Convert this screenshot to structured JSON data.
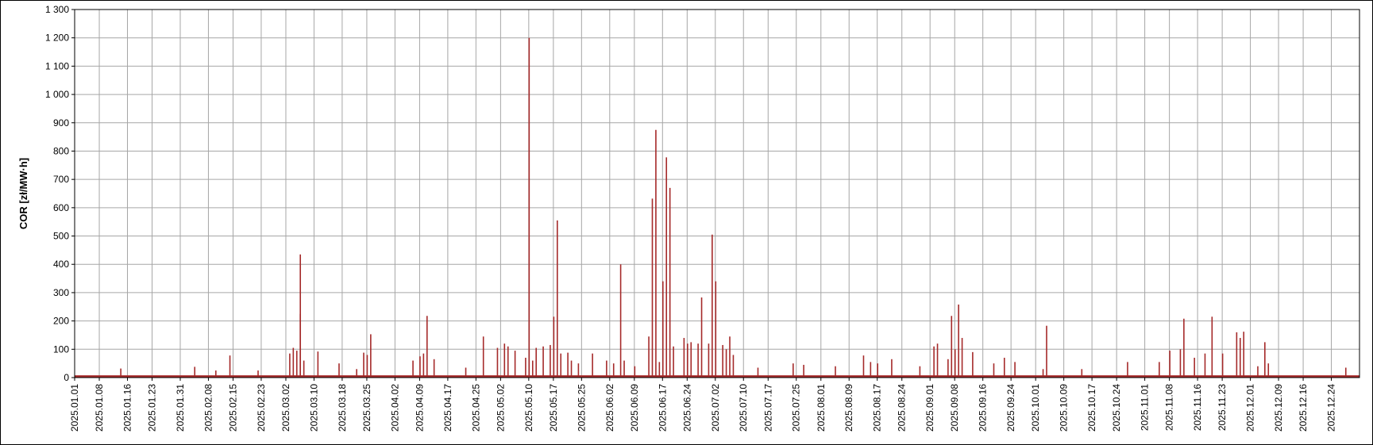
{
  "chart_data": {
    "type": "bar",
    "title": "",
    "xlabel": "",
    "ylabel": "COR [zł/MW·h]",
    "ylim": [
      0,
      1300
    ],
    "yticks": [
      0,
      100,
      200,
      300,
      400,
      500,
      600,
      700,
      800,
      900,
      1000,
      1100,
      1200,
      1300
    ],
    "ytick_labels": [
      "0",
      "100",
      "200",
      "300",
      "400",
      "500",
      "600",
      "700",
      "800",
      "900",
      "1 000",
      "1 100",
      "1 200",
      "1 300"
    ],
    "xlim": [
      "2025-01-01",
      "2025-12-31"
    ],
    "xtick_labels": [
      "2025.01.01",
      "2025.01.08",
      "2025.01.16",
      "2025.01.23",
      "2025.01.31",
      "2025.02.08",
      "2025.02.15",
      "2025.02.23",
      "2025.03.02",
      "2025.03.10",
      "2025.03.18",
      "2025.03.25",
      "2025.04.02",
      "2025.04.09",
      "2025.04.17",
      "2025.04.25",
      "2025.05.02",
      "2025.05.10",
      "2025.05.17",
      "2025.05.25",
      "2025.06.02",
      "2025.06.09",
      "2025.06.17",
      "2025.06.24",
      "2025.07.02",
      "2025.07.10",
      "2025.07.17",
      "2025.07.25",
      "2025.08.01",
      "2025.08.09",
      "2025.08.17",
      "2025.08.24",
      "2025.09.01",
      "2025.09.08",
      "2025.09.16",
      "2025.09.24",
      "2025.10.01",
      "2025.10.09",
      "2025.10.17",
      "2025.10.24",
      "2025.11.01",
      "2025.11.08",
      "2025.11.16",
      "2025.11.23",
      "2025.12.01",
      "2025.12.09",
      "2025.12.16",
      "2025.12.24"
    ],
    "grid": true,
    "legend": "none",
    "baseline_value": 8,
    "color": "#a52a2a",
    "points": [
      {
        "x": "2025-01-14",
        "y": 32
      },
      {
        "x": "2025-02-04",
        "y": 38
      },
      {
        "x": "2025-02-10",
        "y": 25
      },
      {
        "x": "2025-02-14",
        "y": 78
      },
      {
        "x": "2025-02-22",
        "y": 25
      },
      {
        "x": "2025-03-03",
        "y": 85
      },
      {
        "x": "2025-03-04",
        "y": 105
      },
      {
        "x": "2025-03-05",
        "y": 95
      },
      {
        "x": "2025-03-06",
        "y": 225
      },
      {
        "x": "2025-03-06",
        "y": 435
      },
      {
        "x": "2025-03-07",
        "y": 60
      },
      {
        "x": "2025-03-11",
        "y": 92
      },
      {
        "x": "2025-03-17",
        "y": 50
      },
      {
        "x": "2025-03-22",
        "y": 30
      },
      {
        "x": "2025-03-24",
        "y": 88
      },
      {
        "x": "2025-03-25",
        "y": 80
      },
      {
        "x": "2025-03-26",
        "y": 153
      },
      {
        "x": "2025-04-07",
        "y": 60
      },
      {
        "x": "2025-04-09",
        "y": 75
      },
      {
        "x": "2025-04-10",
        "y": 85
      },
      {
        "x": "2025-04-11",
        "y": 218
      },
      {
        "x": "2025-04-13",
        "y": 65
      },
      {
        "x": "2025-04-22",
        "y": 35
      },
      {
        "x": "2025-04-27",
        "y": 145
      },
      {
        "x": "2025-05-01",
        "y": 105
      },
      {
        "x": "2025-05-03",
        "y": 120
      },
      {
        "x": "2025-05-04",
        "y": 110
      },
      {
        "x": "2025-05-06",
        "y": 95
      },
      {
        "x": "2025-05-09",
        "y": 70
      },
      {
        "x": "2025-05-10",
        "y": 1200
      },
      {
        "x": "2025-05-11",
        "y": 60
      },
      {
        "x": "2025-05-12",
        "y": 105
      },
      {
        "x": "2025-05-14",
        "y": 110
      },
      {
        "x": "2025-05-16",
        "y": 115
      },
      {
        "x": "2025-05-17",
        "y": 215
      },
      {
        "x": "2025-05-18",
        "y": 555
      },
      {
        "x": "2025-05-19",
        "y": 85
      },
      {
        "x": "2025-05-21",
        "y": 88
      },
      {
        "x": "2025-05-22",
        "y": 60
      },
      {
        "x": "2025-05-24",
        "y": 50
      },
      {
        "x": "2025-05-28",
        "y": 85
      },
      {
        "x": "2025-06-01",
        "y": 60
      },
      {
        "x": "2025-06-03",
        "y": 50
      },
      {
        "x": "2025-06-05",
        "y": 400
      },
      {
        "x": "2025-06-06",
        "y": 60
      },
      {
        "x": "2025-06-09",
        "y": 40
      },
      {
        "x": "2025-06-13",
        "y": 145
      },
      {
        "x": "2025-06-14",
        "y": 632
      },
      {
        "x": "2025-06-15",
        "y": 875
      },
      {
        "x": "2025-06-16",
        "y": 55
      },
      {
        "x": "2025-06-17",
        "y": 340
      },
      {
        "x": "2025-06-18",
        "y": 778
      },
      {
        "x": "2025-06-19",
        "y": 670
      },
      {
        "x": "2025-06-20",
        "y": 110
      },
      {
        "x": "2025-06-23",
        "y": 140
      },
      {
        "x": "2025-06-24",
        "y": 120
      },
      {
        "x": "2025-06-25",
        "y": 125
      },
      {
        "x": "2025-06-27",
        "y": 120
      },
      {
        "x": "2025-06-28",
        "y": 283
      },
      {
        "x": "2025-06-30",
        "y": 120
      },
      {
        "x": "2025-07-01",
        "y": 505
      },
      {
        "x": "2025-07-02",
        "y": 340
      },
      {
        "x": "2025-07-04",
        "y": 115
      },
      {
        "x": "2025-07-05",
        "y": 100
      },
      {
        "x": "2025-07-06",
        "y": 145
      },
      {
        "x": "2025-07-07",
        "y": 80
      },
      {
        "x": "2025-07-14",
        "y": 35
      },
      {
        "x": "2025-07-24",
        "y": 50
      },
      {
        "x": "2025-07-27",
        "y": 45
      },
      {
        "x": "2025-08-05",
        "y": 40
      },
      {
        "x": "2025-08-13",
        "y": 78
      },
      {
        "x": "2025-08-15",
        "y": 55
      },
      {
        "x": "2025-08-17",
        "y": 50
      },
      {
        "x": "2025-08-21",
        "y": 65
      },
      {
        "x": "2025-08-29",
        "y": 40
      },
      {
        "x": "2025-09-02",
        "y": 110
      },
      {
        "x": "2025-09-03",
        "y": 120
      },
      {
        "x": "2025-09-06",
        "y": 65
      },
      {
        "x": "2025-09-07",
        "y": 218
      },
      {
        "x": "2025-09-08",
        "y": 100
      },
      {
        "x": "2025-09-09",
        "y": 258
      },
      {
        "x": "2025-09-10",
        "y": 140
      },
      {
        "x": "2025-09-13",
        "y": 90
      },
      {
        "x": "2025-09-19",
        "y": 50
      },
      {
        "x": "2025-09-22",
        "y": 70
      },
      {
        "x": "2025-09-25",
        "y": 55
      },
      {
        "x": "2025-10-03",
        "y": 30
      },
      {
        "x": "2025-10-04",
        "y": 183
      },
      {
        "x": "2025-10-14",
        "y": 30
      },
      {
        "x": "2025-10-27",
        "y": 55
      },
      {
        "x": "2025-11-05",
        "y": 55
      },
      {
        "x": "2025-11-08",
        "y": 95
      },
      {
        "x": "2025-11-11",
        "y": 100
      },
      {
        "x": "2025-11-12",
        "y": 208
      },
      {
        "x": "2025-11-15",
        "y": 70
      },
      {
        "x": "2025-11-18",
        "y": 85
      },
      {
        "x": "2025-11-20",
        "y": 215
      },
      {
        "x": "2025-11-23",
        "y": 85
      },
      {
        "x": "2025-11-27",
        "y": 160
      },
      {
        "x": "2025-11-28",
        "y": 140
      },
      {
        "x": "2025-11-29",
        "y": 162
      },
      {
        "x": "2025-12-03",
        "y": 40
      },
      {
        "x": "2025-12-05",
        "y": 125
      },
      {
        "x": "2025-12-06",
        "y": 50
      },
      {
        "x": "2025-12-28",
        "y": 35
      }
    ]
  }
}
